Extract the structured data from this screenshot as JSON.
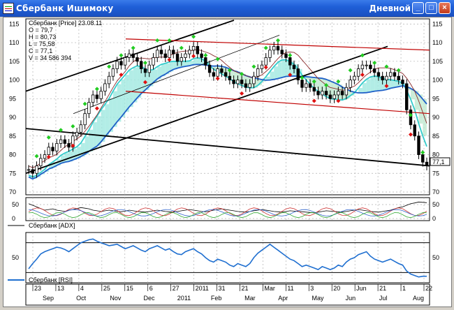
{
  "window": {
    "title": "Сбербанк Ишимоку",
    "period": "Дневной",
    "buttons": {
      "minimize": "_",
      "maximize": "□",
      "close": "×"
    }
  },
  "legend": {
    "line1": "Сбербанк [Price] 23.08.11",
    "line2": "O = 79,7",
    "line3": "H = 80,73",
    "line4": "L = 75,58",
    "line5": "C = 77,1",
    "line6": "V = 34 586 394"
  },
  "last_price_label": "77,1",
  "adx_label": "Сбербанк [ADX]",
  "rsi_label": "Сбербанк [RSI]",
  "price_ticks": [
    "115",
    "110",
    "105",
    "100",
    "95",
    "90",
    "85",
    "80",
    "75",
    "70"
  ],
  "adx_ticks": [
    "50",
    "0"
  ],
  "rsi_ticks": [
    "50"
  ],
  "date_ticks": [
    "23",
    "13",
    "4",
    "25",
    "15",
    "6",
    "27",
    "2011",
    "31",
    "21",
    "Mar",
    "11",
    "3",
    "20",
    "Jun",
    "21",
    "1",
    "22"
  ],
  "month_labels": [
    "Sep",
    "Oct",
    "Nov",
    "Dec",
    "2011",
    "Feb",
    "Mar",
    "Apr",
    "May",
    "Jun",
    "Jul",
    "Aug"
  ],
  "chart_data": {
    "type": "candlestick",
    "y_range": [
      70,
      116
    ],
    "price_close": [
      76,
      75,
      77,
      79,
      80,
      82,
      81,
      83,
      84,
      83,
      82,
      85,
      86,
      88,
      91,
      94,
      96,
      95,
      97,
      99,
      101,
      103,
      105,
      104,
      106,
      107,
      106,
      105,
      103,
      102,
      104,
      106,
      108,
      107,
      106,
      108,
      107,
      105,
      106,
      107,
      108,
      109,
      107,
      106,
      104,
      102,
      101,
      103,
      102,
      101,
      100,
      99,
      100,
      99,
      98,
      99,
      101,
      103,
      104,
      106,
      108,
      109,
      108,
      107,
      106,
      104,
      103,
      100,
      98,
      99,
      98,
      97,
      96,
      97,
      96,
      95,
      96,
      97,
      96,
      98,
      100,
      101,
      103,
      104,
      104,
      103,
      102,
      101,
      100,
      101,
      102,
      101,
      100,
      99,
      92,
      88,
      85,
      80,
      78,
      77
    ],
    "rsi": [
      35,
      42,
      48,
      55,
      58,
      60,
      62,
      64,
      63,
      61,
      58,
      62,
      66,
      70,
      72,
      74,
      75,
      72,
      70,
      68,
      66,
      67,
      68,
      65,
      62,
      64,
      66,
      63,
      60,
      58,
      62,
      64,
      66,
      63,
      60,
      62,
      58,
      55,
      54,
      58,
      60,
      62,
      58,
      55,
      50,
      46,
      44,
      48,
      46,
      44,
      40,
      38,
      42,
      40,
      38,
      42,
      50,
      56,
      60,
      64,
      68,
      64,
      60,
      56,
      52,
      48,
      46,
      42,
      38,
      40,
      38,
      36,
      34,
      38,
      36,
      34,
      36,
      40,
      38,
      44,
      48,
      50,
      54,
      56,
      58,
      52,
      48,
      46,
      44,
      46,
      48,
      45,
      42,
      40,
      32,
      28,
      26,
      24,
      25,
      25
    ],
    "adx": [
      50,
      45,
      40,
      35,
      30,
      32,
      34,
      30,
      28,
      26,
      30,
      32,
      35,
      38,
      36,
      34,
      30,
      28,
      26,
      28,
      30,
      28,
      26,
      25,
      27,
      30,
      28,
      26,
      25,
      24,
      26,
      28,
      30,
      28,
      26,
      25,
      24,
      26,
      28,
      30,
      32,
      30,
      28,
      26,
      25,
      27,
      30,
      32,
      34,
      32,
      30,
      28,
      26,
      25,
      24,
      26,
      28,
      30,
      32,
      30,
      28,
      26,
      25,
      24,
      26,
      28,
      27,
      26,
      25,
      24,
      23,
      22,
      24,
      26,
      28,
      27,
      26,
      25,
      24,
      26,
      28,
      30,
      32,
      30,
      28,
      26,
      25,
      24,
      26,
      28,
      30,
      34,
      38,
      40,
      45,
      50,
      52,
      55,
      54,
      53
    ]
  }
}
